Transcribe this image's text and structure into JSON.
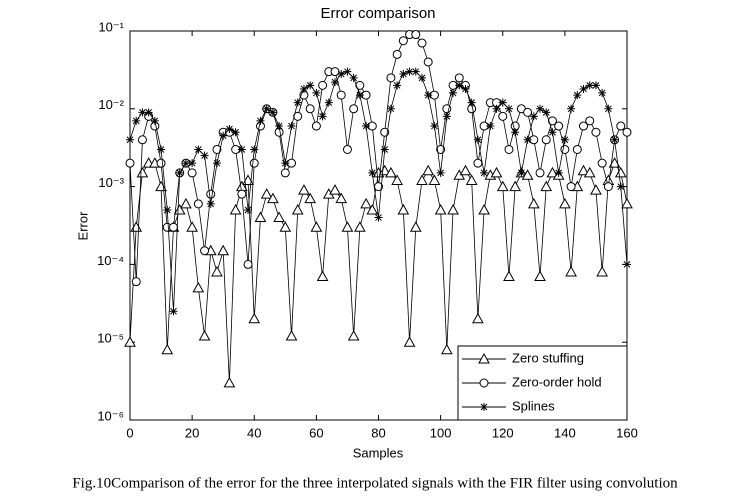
{
  "chart_data": {
    "type": "line",
    "title": "Error comparison",
    "xlabel": "Samples",
    "ylabel": "Error",
    "caption": "Fig.10Comparison of the error for the three interpolated signals with the FIR filter using convolution",
    "log_y": true,
    "legend": "lower right",
    "xlim": [
      0,
      160
    ],
    "xticks": [
      0,
      20,
      40,
      60,
      80,
      100,
      120,
      140,
      160
    ],
    "ylim": [
      1e-06,
      0.1
    ],
    "yticks": [
      {
        "value": 1e-06,
        "label": "10⁻⁶"
      },
      {
        "value": 1e-05,
        "label": "10⁻⁵"
      },
      {
        "value": 0.0001,
        "label": "10⁻⁴"
      },
      {
        "value": 0.001,
        "label": "10⁻³"
      },
      {
        "value": 0.01,
        "label": "10⁻²"
      },
      {
        "value": 0.1,
        "label": "10⁻¹"
      }
    ],
    "x": [
      0,
      2,
      4,
      6,
      8,
      10,
      12,
      14,
      16,
      18,
      20,
      22,
      24,
      26,
      28,
      30,
      32,
      34,
      36,
      38,
      40,
      42,
      44,
      46,
      48,
      50,
      52,
      54,
      56,
      58,
      60,
      62,
      64,
      66,
      68,
      70,
      72,
      74,
      76,
      78,
      80,
      82,
      84,
      86,
      88,
      90,
      92,
      94,
      96,
      98,
      100,
      102,
      104,
      106,
      108,
      110,
      112,
      114,
      116,
      118,
      120,
      122,
      124,
      126,
      128,
      130,
      132,
      134,
      136,
      138,
      140,
      142,
      144,
      146,
      148,
      150,
      152,
      154,
      156,
      158,
      160
    ],
    "series": [
      {
        "name": "Zero stuffing",
        "marker": "triangle",
        "color": "#000000",
        "values": [
          1e-05,
          0.0003,
          0.0015,
          0.002,
          0.002,
          0.001,
          8e-06,
          0.0003,
          0.0005,
          0.0006,
          0.0003,
          5e-05,
          1.2e-05,
          0.00015,
          8e-05,
          0.00015,
          3e-06,
          0.0005,
          0.001,
          0.0012,
          2e-05,
          0.0004,
          0.0008,
          0.0007,
          0.0004,
          0.0003,
          1.2e-05,
          0.0005,
          0.0009,
          0.0007,
          0.0003,
          7e-05,
          0.0008,
          0.0009,
          0.0007,
          0.0003,
          1.2e-05,
          0.0003,
          0.0006,
          0.0005,
          0.0015,
          0.0016,
          0.0015,
          0.0012,
          0.0005,
          1e-05,
          0.0003,
          0.0012,
          0.0016,
          0.0012,
          0.0005,
          8e-06,
          0.0005,
          0.0014,
          0.0016,
          0.0012,
          2e-05,
          0.0005,
          0.0014,
          0.0015,
          0.001,
          7e-05,
          0.001,
          0.0015,
          0.0014,
          0.0006,
          7e-05,
          0.001,
          0.0015,
          0.0014,
          0.0006,
          8e-05,
          0.001,
          0.0016,
          0.0015,
          0.0009,
          8e-05,
          0.0012,
          0.002,
          0.0015,
          0.0006
        ]
      },
      {
        "name": "Zero-order hold",
        "marker": "circle",
        "color": "#000000",
        "values": [
          0.002,
          6e-05,
          0.004,
          0.008,
          0.006,
          0.002,
          0.0003,
          0.0003,
          0.0015,
          0.002,
          0.0015,
          0.0006,
          0.00015,
          0.0008,
          0.003,
          0.005,
          0.005,
          0.003,
          0.0008,
          0.0001,
          0.002,
          0.006,
          0.01,
          0.009,
          0.005,
          0.0015,
          0.002,
          0.008,
          0.015,
          0.01,
          0.006,
          0.02,
          0.03,
          0.03,
          0.015,
          0.003,
          0.01,
          0.02,
          0.015,
          0.006,
          0.001,
          0.005,
          0.025,
          0.05,
          0.075,
          0.09,
          0.09,
          0.07,
          0.04,
          0.015,
          0.003,
          0.01,
          0.02,
          0.025,
          0.02,
          0.01,
          0.002,
          0.006,
          0.012,
          0.012,
          0.008,
          0.003,
          0.006,
          0.01,
          0.009,
          0.004,
          0.0015,
          0.004,
          0.007,
          0.006,
          0.003,
          0.001,
          0.003,
          0.006,
          0.007,
          0.005,
          0.002,
          0.001,
          0.004,
          0.006,
          0.005
        ]
      },
      {
        "name": "Splines",
        "marker": "star",
        "color": "#000000",
        "values": [
          0.004,
          0.007,
          0.009,
          0.009,
          0.007,
          0.003,
          0.0005,
          2.5e-05,
          0.0015,
          0.002,
          0.002,
          0.003,
          0.0025,
          0.0006,
          0.002,
          0.0045,
          0.0055,
          0.005,
          0.003,
          0.0005,
          0.003,
          0.007,
          0.01,
          0.009,
          0.006,
          0.002,
          0.006,
          0.012,
          0.018,
          0.02,
          0.016,
          0.008,
          0.012,
          0.022,
          0.028,
          0.03,
          0.025,
          0.015,
          0.006,
          0.0015,
          0.0004,
          0.003,
          0.01,
          0.02,
          0.028,
          0.03,
          0.03,
          0.025,
          0.015,
          0.006,
          0.0015,
          0.008,
          0.016,
          0.02,
          0.018,
          0.012,
          0.004,
          0.0015,
          0.006,
          0.01,
          0.012,
          0.01,
          0.005,
          0.0015,
          0.004,
          0.008,
          0.01,
          0.009,
          0.005,
          0.0015,
          0.004,
          0.01,
          0.015,
          0.018,
          0.02,
          0.02,
          0.016,
          0.01,
          0.004,
          0.001,
          0.0001
        ]
      }
    ]
  }
}
